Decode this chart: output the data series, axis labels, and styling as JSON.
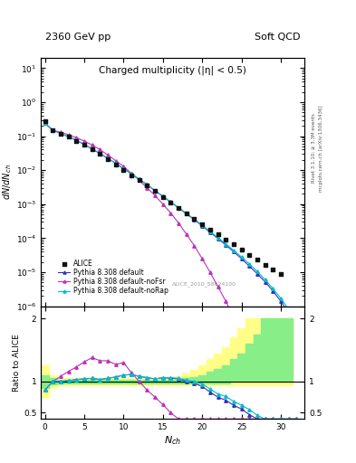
{
  "title_left": "2360 GeV pp",
  "title_right": "Soft QCD",
  "main_title": "Charged multiplicity (η| < 0.5)",
  "main_title2": "Charged multiplicity (|η| < 0.5)",
  "ylabel_main": "dN/dN_ch",
  "ylabel_ratio": "Ratio to ALICE",
  "xlabel": "N_ch",
  "right_label_top": "Rivet 3.1.10; ≥ 3.3M events",
  "right_label_bottom": "mcplots.cern.ch [arXiv:1306.3436]",
  "ref_label": "ALICE_2010_S8624100",
  "legend": [
    "ALICE",
    "Pythia 8.308 default",
    "Pythia 8.308 default-noFsr",
    "Pythia 8.308 default-noRap"
  ],
  "alice_x": [
    0,
    1,
    2,
    3,
    4,
    5,
    6,
    7,
    8,
    9,
    10,
    11,
    12,
    13,
    14,
    15,
    16,
    17,
    18,
    19,
    20,
    21,
    22,
    23,
    24,
    25,
    26,
    27,
    28,
    29,
    30
  ],
  "alice_y": [
    0.28,
    0.15,
    0.12,
    0.095,
    0.073,
    0.055,
    0.04,
    0.03,
    0.021,
    0.015,
    0.01,
    0.007,
    0.005,
    0.0035,
    0.0024,
    0.0016,
    0.0011,
    0.00075,
    0.00052,
    0.00036,
    0.00025,
    0.00018,
    0.00013,
    9e-05,
    6.5e-05,
    4.5e-05,
    3.2e-05,
    2.3e-05,
    1.6e-05,
    1.2e-05,
    9e-06
  ],
  "pythia_default_x": [
    0,
    1,
    2,
    3,
    4,
    5,
    6,
    7,
    8,
    9,
    10,
    11,
    12,
    13,
    14,
    15,
    16,
    17,
    18,
    19,
    20,
    21,
    22,
    23,
    24,
    25,
    26,
    27,
    28,
    29,
    30,
    31,
    32
  ],
  "pythia_default_y": [
    0.24,
    0.15,
    0.12,
    0.096,
    0.075,
    0.057,
    0.042,
    0.031,
    0.022,
    0.016,
    0.011,
    0.0078,
    0.0054,
    0.0037,
    0.0025,
    0.0017,
    0.00115,
    0.00078,
    0.00052,
    0.00035,
    0.00023,
    0.00015,
    9.8e-05,
    6.3e-05,
    4e-05,
    2.5e-05,
    1.5e-05,
    9e-06,
    5.2e-06,
    2.8e-06,
    1.4e-06,
    6e-07,
    2e-07
  ],
  "pythia_nofsr_x": [
    0,
    1,
    2,
    3,
    4,
    5,
    6,
    7,
    8,
    9,
    10,
    11,
    12,
    13,
    14,
    15,
    16,
    17,
    18,
    19,
    20,
    21,
    22,
    23,
    24,
    25,
    26,
    27,
    28,
    29,
    30,
    31,
    32
  ],
  "pythia_nofsr_y": [
    0.24,
    0.15,
    0.13,
    0.11,
    0.09,
    0.072,
    0.055,
    0.04,
    0.028,
    0.019,
    0.013,
    0.008,
    0.005,
    0.003,
    0.0018,
    0.001,
    0.00055,
    0.00028,
    0.00013,
    6e-05,
    2.5e-05,
    1e-05,
    3.8e-06,
    1.4e-06,
    4.5e-07,
    1.3e-07,
    3.5e-08,
    8e-09,
    1.5e-09,
    2e-10,
    2e-11,
    1e-12,
    5e-14
  ],
  "pythia_norap_x": [
    0,
    1,
    2,
    3,
    4,
    5,
    6,
    7,
    8,
    9,
    10,
    11,
    12,
    13,
    14,
    15,
    16,
    17,
    18,
    19,
    20,
    21,
    22,
    23,
    24,
    25,
    26,
    27,
    28,
    29,
    30,
    31,
    32
  ],
  "pythia_norap_y": [
    0.24,
    0.15,
    0.12,
    0.096,
    0.075,
    0.057,
    0.042,
    0.031,
    0.022,
    0.016,
    0.011,
    0.0078,
    0.0054,
    0.0037,
    0.0025,
    0.0017,
    0.00115,
    0.00078,
    0.00053,
    0.00036,
    0.00024,
    0.000158,
    0.000104,
    6.8e-05,
    4.4e-05,
    2.8e-05,
    1.75e-05,
    1.05e-05,
    6e-06,
    3.3e-06,
    1.7e-06,
    8e-07,
    3.5e-07
  ],
  "ratio_default_y": [
    0.86,
    1.0,
    1.0,
    1.01,
    1.03,
    1.04,
    1.05,
    1.03,
    1.05,
    1.07,
    1.1,
    1.11,
    1.08,
    1.06,
    1.04,
    1.06,
    1.05,
    1.04,
    1.0,
    0.97,
    0.92,
    0.83,
    0.75,
    0.7,
    0.62,
    0.56,
    0.47,
    0.39,
    0.33,
    0.23,
    0.16,
    0.05,
    0.02
  ],
  "ratio_nofsr_y": [
    0.86,
    1.0,
    1.08,
    1.16,
    1.23,
    1.31,
    1.38,
    1.33,
    1.33,
    1.27,
    1.3,
    1.14,
    1.0,
    0.86,
    0.75,
    0.63,
    0.5,
    0.37,
    0.25,
    0.17,
    0.1,
    0.056,
    0.029,
    0.016,
    0.007,
    0.003,
    0.001,
    0.0004,
    0.0001,
    1.7e-05,
    9e-07,
    4e-08,
    2e-09
  ],
  "ratio_norap_y": [
    0.86,
    1.0,
    1.0,
    1.01,
    1.03,
    1.04,
    1.05,
    1.03,
    1.05,
    1.07,
    1.1,
    1.11,
    1.08,
    1.06,
    1.04,
    1.06,
    1.06,
    1.05,
    1.02,
    1.0,
    0.96,
    0.88,
    0.8,
    0.76,
    0.68,
    0.62,
    0.55,
    0.46,
    0.38,
    0.28,
    0.19,
    0.07,
    0.04
  ],
  "band_yellow_x": [
    -0.5,
    0.5,
    1.5,
    2.5,
    3.5,
    4.5,
    5.5,
    6.5,
    7.5,
    8.5,
    9.5,
    10.5,
    11.5,
    12.5,
    13.5,
    14.5,
    15.5,
    16.5,
    17.5,
    18.5,
    19.5,
    20.5,
    21.5,
    22.5,
    23.5,
    24.5,
    25.5,
    26.5,
    27.5,
    28.5,
    29.5,
    30.5,
    31.5
  ],
  "band_green_lo": [
    0.9,
    0.95,
    0.97,
    0.97,
    0.97,
    0.97,
    0.97,
    0.97,
    0.97,
    0.97,
    0.97,
    0.97,
    0.97,
    0.97,
    0.97,
    0.97,
    0.97,
    0.97,
    0.97,
    0.97,
    0.97,
    0.97,
    0.97,
    0.97,
    1.0,
    1.0,
    1.0,
    1.0,
    1.0,
    1.0,
    1.0,
    1.0,
    1.0
  ],
  "band_green_hi": [
    1.1,
    1.05,
    1.03,
    1.03,
    1.03,
    1.03,
    1.03,
    1.03,
    1.03,
    1.03,
    1.03,
    1.03,
    1.03,
    1.03,
    1.03,
    1.03,
    1.03,
    1.03,
    1.05,
    1.07,
    1.1,
    1.15,
    1.2,
    1.25,
    1.35,
    1.45,
    1.6,
    1.75,
    2.0,
    2.0,
    2.0,
    2.0,
    2.0
  ],
  "band_yellow_lo": [
    0.75,
    0.9,
    0.94,
    0.94,
    0.94,
    0.94,
    0.94,
    0.94,
    0.94,
    0.94,
    0.94,
    0.94,
    0.94,
    0.94,
    0.94,
    0.94,
    0.94,
    0.94,
    0.94,
    0.94,
    0.94,
    0.94,
    0.94,
    0.94,
    0.94,
    0.94,
    0.94,
    0.94,
    0.94,
    0.94,
    0.94,
    0.94,
    0.94
  ],
  "band_yellow_hi": [
    1.25,
    1.1,
    1.06,
    1.06,
    1.06,
    1.06,
    1.06,
    1.06,
    1.06,
    1.06,
    1.06,
    1.06,
    1.06,
    1.06,
    1.06,
    1.06,
    1.06,
    1.08,
    1.12,
    1.18,
    1.25,
    1.35,
    1.45,
    1.55,
    1.7,
    1.85,
    2.0,
    2.0,
    2.0,
    2.0,
    2.0,
    2.0,
    2.0
  ],
  "color_default": "#3333bb",
  "color_nofsr": "#bb33bb",
  "color_norap": "#00bbcc",
  "color_alice": "#111111",
  "ylim_main": [
    1e-06,
    20
  ],
  "ylim_ratio": [
    0.4,
    2.2
  ],
  "xlim": [
    -0.5,
    33
  ],
  "xticks": [
    0,
    5,
    10,
    15,
    20,
    25,
    30
  ],
  "yticks_ratio": [
    0.5,
    1.0,
    2.0
  ],
  "ytick_ratio_labels": [
    "0.5",
    "1",
    "2"
  ]
}
